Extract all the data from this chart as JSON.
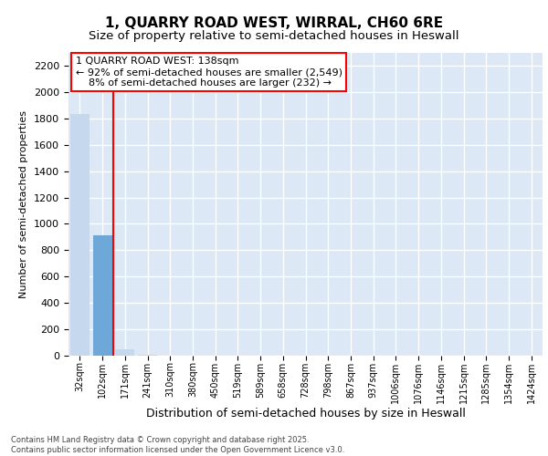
{
  "title_line1": "1, QUARRY ROAD WEST, WIRRAL, CH60 6RE",
  "title_line2": "Size of property relative to semi-detached houses in Heswall",
  "xlabel": "Distribution of semi-detached houses by size in Heswall",
  "ylabel": "Number of semi-detached properties",
  "annotation_text": "1 QUARRY ROAD WEST: 138sqm\n← 92% of semi-detached houses are smaller (2,549)\n    8% of semi-detached houses are larger (232) →",
  "categories": [
    "32sqm",
    "102sqm",
    "171sqm",
    "241sqm",
    "310sqm",
    "380sqm",
    "450sqm",
    "519sqm",
    "589sqm",
    "658sqm",
    "728sqm",
    "798sqm",
    "867sqm",
    "937sqm",
    "1006sqm",
    "1076sqm",
    "1146sqm",
    "1215sqm",
    "1285sqm",
    "1354sqm",
    "1424sqm"
  ],
  "values": [
    1830,
    910,
    50,
    10,
    3,
    2,
    1,
    1,
    1,
    1,
    0,
    0,
    0,
    0,
    0,
    0,
    0,
    0,
    0,
    0,
    0
  ],
  "bar_color_left": "#c5d8ee",
  "bar_color_highlight": "#6ea8d8",
  "bar_color_right": "#c5d8ee",
  "property_bin_index": 1,
  "vline_x": 1.5,
  "ylim_max": 2300,
  "yticks": [
    0,
    200,
    400,
    600,
    800,
    1000,
    1200,
    1400,
    1600,
    1800,
    2000,
    2200
  ],
  "background_color": "#dce8f5",
  "grid_color": "#ffffff",
  "footer_text": "Contains HM Land Registry data © Crown copyright and database right 2025.\nContains public sector information licensed under the Open Government Licence v3.0.",
  "title_fontsize": 11,
  "subtitle_fontsize": 9.5,
  "annotation_fontsize": 8,
  "ylabel_fontsize": 8,
  "xlabel_fontsize": 9,
  "tick_fontsize": 8,
  "xtick_fontsize": 7
}
